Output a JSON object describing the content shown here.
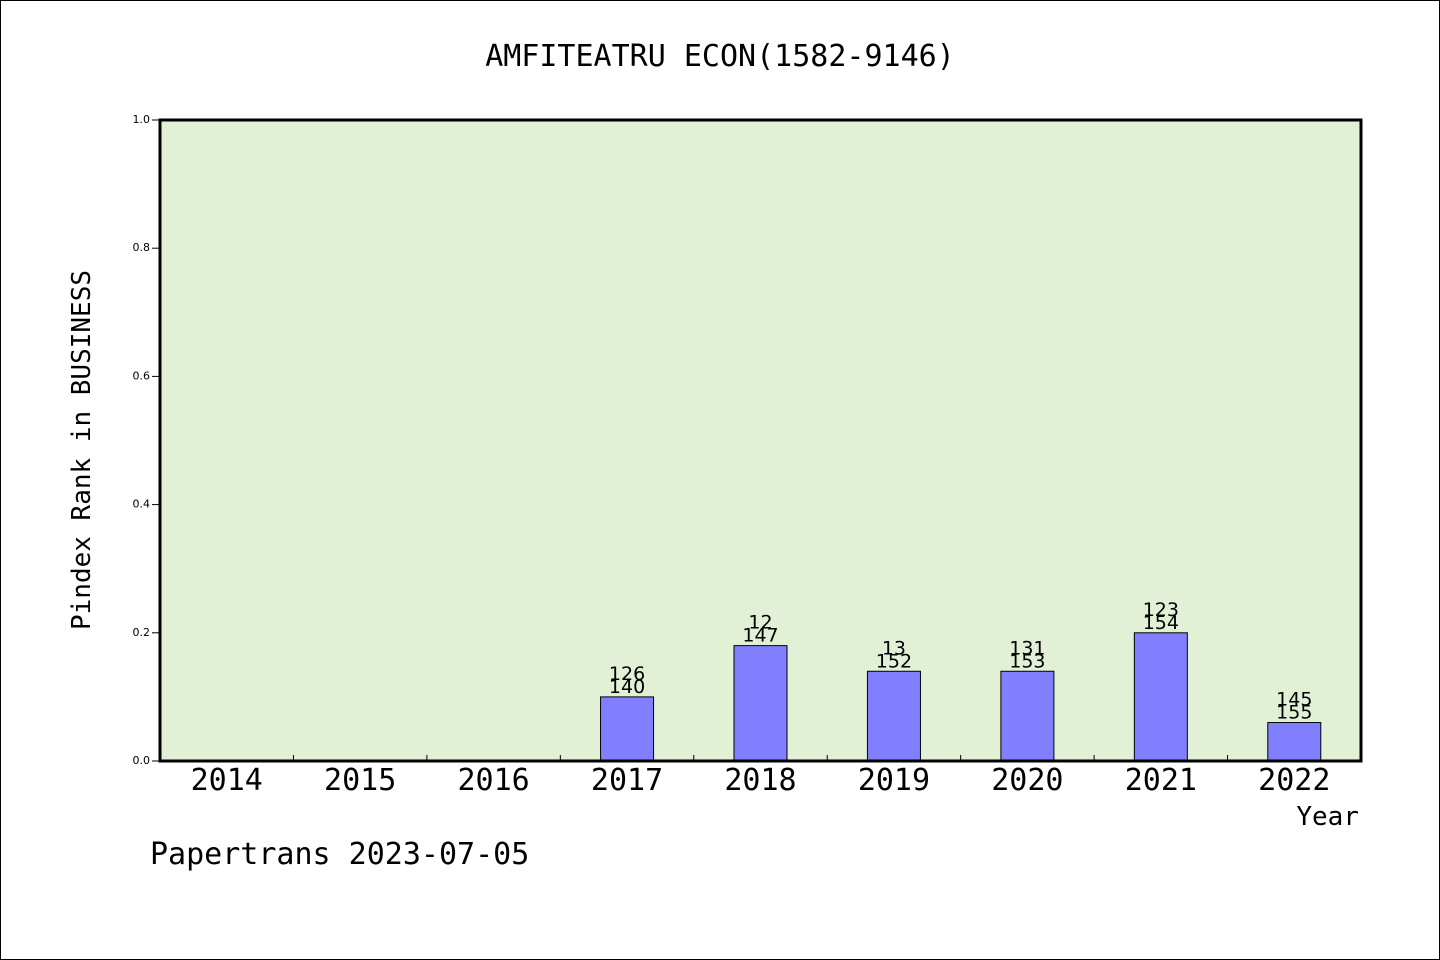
{
  "chart_data": {
    "type": "bar",
    "title": "AMFITEATRU ECON(1582-9146)",
    "xlabel": "Year",
    "ylabel": "Pindex Rank in BUSINESS",
    "footer": "Papertrans 2023-07-05",
    "ylim": [
      0,
      1.0
    ],
    "yticks": [
      "0.0",
      "0.2",
      "0.4",
      "0.6",
      "0.8",
      "1.0"
    ],
    "categories": [
      "2014",
      "2015",
      "2016",
      "2017",
      "2018",
      "2019",
      "2020",
      "2021",
      "2022"
    ],
    "values": [
      0,
      0,
      0,
      0.1,
      0.18,
      0.14,
      0.14,
      0.2,
      0.06
    ],
    "labels_top": [
      "",
      "",
      "",
      "126",
      "12",
      "13",
      "131",
      "123",
      "145"
    ],
    "labels_bottom": [
      "",
      "",
      "",
      "140",
      "147",
      "152",
      "153",
      "154",
      "155"
    ],
    "colors": {
      "plot_bg": "#e2f0d6",
      "bar": "#8080ff",
      "axis": "#000000"
    },
    "grid": false,
    "legend": "none"
  }
}
